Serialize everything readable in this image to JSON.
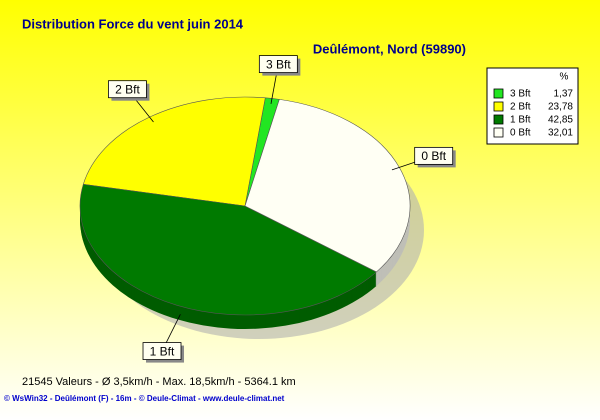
{
  "chart_data": {
    "type": "pie",
    "title": "Distribution Force du vent  juin 2014",
    "subtitle": "Deûlémont, Nord (59890)",
    "legend_title": "%",
    "categories": [
      "3 Bft",
      "2 Bft",
      "1 Bft",
      "0 Bft"
    ],
    "values": [
      1.37,
      23.78,
      42.85,
      32.01
    ],
    "value_labels": [
      "1,37",
      "23,78",
      "42,85",
      "32,01"
    ],
    "colors": [
      "#22e622",
      "#ffff00",
      "#007a00",
      "#fffff4"
    ],
    "footer": "21545 Valeurs   -   Ø 3,5km/h  -  Max. 18,5km/h  -   5364.1 km",
    "credit": "© WsWin32  -  Deûlémont (F) - 16m  -  © Deule-Climat - www.deule-climat.net"
  }
}
